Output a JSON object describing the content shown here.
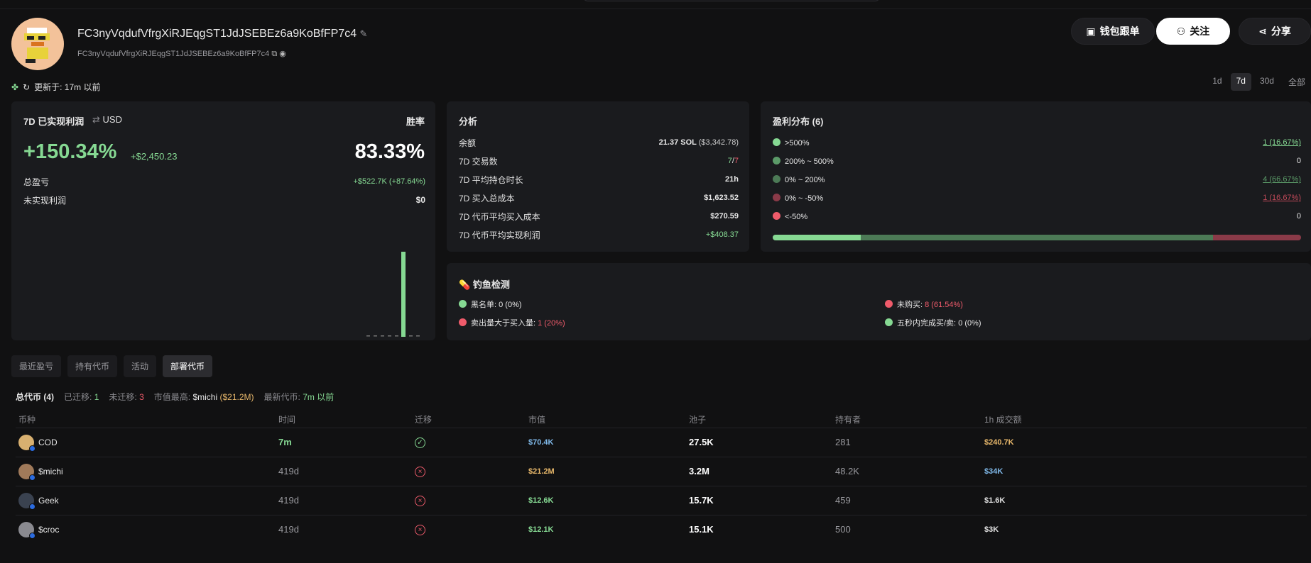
{
  "header": {
    "address": "FC3nyVqdufVfrgXiRJEqgST1JdJSEBEz6a9KoBfFP7c4",
    "address_short": "FC3nyVqdufVfrgXiRJEqgST1JdJSEBEz6a9KoBfFP7c4",
    "buttons": {
      "copytrade": "钱包跟单",
      "follow": "关注",
      "share": "分享"
    }
  },
  "updated": "更新于: 17m 以前",
  "ranges": [
    "1d",
    "7d",
    "30d",
    "全部"
  ],
  "pnl": {
    "title": "7D 已实现利润",
    "currency": "USD",
    "winrate_label": "胜率",
    "pct": "+150.34%",
    "usd": "+$2,450.23",
    "winrate": "83.33%",
    "total_label": "总盈亏",
    "total_value": "+$522.7K (+87.64%)",
    "unreal_label": "未实现利润",
    "unreal_value": "$0",
    "bars": [
      0,
      0,
      0,
      0,
      0,
      1,
      0,
      0
    ]
  },
  "analysis": {
    "title": "分析",
    "rows": [
      {
        "label": "余额",
        "value": "21.37 SOL",
        "extra": "($3,342.78)"
      },
      {
        "label": "7D 交易数",
        "value": "7",
        "extra": "7"
      },
      {
        "label": "7D 平均持仓时长",
        "value": "21h"
      },
      {
        "label": "7D 买入总成本",
        "value": "$1,623.52"
      },
      {
        "label": "7D 代币平均买入成本",
        "value": "$270.59"
      },
      {
        "label": "7D 代币平均实现利润",
        "value": "+$408.37"
      }
    ]
  },
  "dist": {
    "title": "盈利分布 (6)",
    "rows": [
      {
        "label": ">500%",
        "value": "1 (16.67%)",
        "color": "#86d993"
      },
      {
        "label": "200% ~ 500%",
        "value": "0",
        "color": "#5b9a68"
      },
      {
        "label": "0% ~ 200%",
        "value": "4 (66.67%)",
        "color": "#4c7a56"
      },
      {
        "label": "0% ~ -50%",
        "value": "1 (16.67%)",
        "color": "#8a3a48"
      },
      {
        "label": "<-50%",
        "value": "0",
        "color": "#ef5b6b"
      }
    ],
    "bar": [
      0.1667,
      0,
      0.6667,
      0.1667
    ]
  },
  "phish": {
    "title": "钓鱼检测",
    "items": [
      {
        "label": "黑名单:",
        "value": "0 (0%)",
        "color": "#86d993"
      },
      {
        "label": "未购买:",
        "value": "8 (61.54%)",
        "color": "#ef5b6b"
      },
      {
        "label": "卖出量大于买入量:",
        "value": "1 (20%)",
        "color": "#ef5b6b"
      },
      {
        "label": "五秒内完成买/卖:",
        "value": "0 (0%)",
        "color": "#86d993"
      }
    ]
  },
  "tabs": [
    "最近盈亏",
    "持有代币",
    "活动",
    "部署代币"
  ],
  "summary": {
    "total": "总代币 (4)",
    "migrated_label": "已迁移:",
    "migrated": "1",
    "unmigrated_label": "未迁移:",
    "unmigrated": "3",
    "top_label": "市值最高:",
    "top_name": "$michi",
    "top_val": "($21.2M)",
    "latest_label": "最新代币:",
    "latest_val": "7m 以前"
  },
  "table": {
    "headers": [
      "币种",
      "时间",
      "迁移",
      "市值",
      "池子",
      "持有者",
      "1h 成交额"
    ],
    "rows": [
      {
        "name": "COD",
        "time": "7m",
        "migrated": true,
        "mcap": "$70.4K",
        "pool": "27.5K",
        "holders": "281",
        "vol": "$240.7K",
        "mcolor": "#7fb8e8",
        "vcolor": "#e8b86b",
        "tcolor": "#86d993",
        "img": "#d8b070"
      },
      {
        "name": "$michi",
        "time": "419d",
        "migrated": false,
        "mcap": "$21.2M",
        "pool": "3.2M",
        "holders": "48.2K",
        "vol": "$34K",
        "mcolor": "#e8b86b",
        "vcolor": "#7fb8e8",
        "tcolor": "#9a9a9f",
        "img": "#a07a5a"
      },
      {
        "name": "Geek",
        "time": "419d",
        "migrated": false,
        "mcap": "$12.6K",
        "pool": "15.7K",
        "holders": "459",
        "vol": "$1.6K",
        "mcolor": "#86d993",
        "vcolor": "#e0e0e0",
        "tcolor": "#9a9a9f",
        "img": "#3a4250"
      },
      {
        "name": "$croc",
        "time": "419d",
        "migrated": false,
        "mcap": "$12.1K",
        "pool": "15.1K",
        "holders": "500",
        "vol": "$3K",
        "mcolor": "#86d993",
        "vcolor": "#e0e0e0",
        "tcolor": "#9a9a9f",
        "img": "#8a8a90"
      }
    ]
  }
}
